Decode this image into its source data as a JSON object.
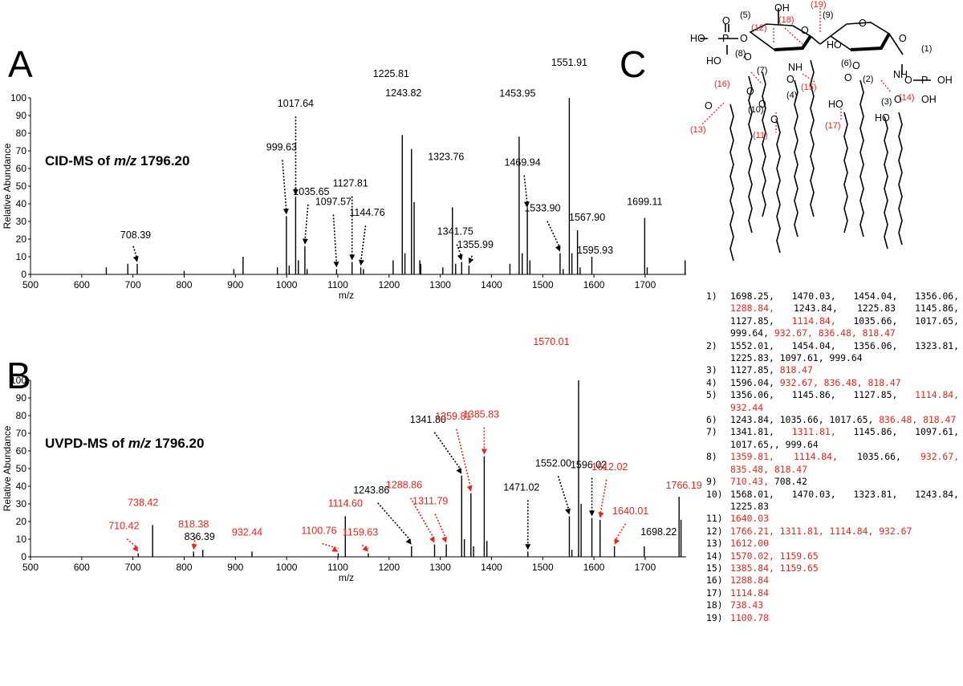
{
  "panels": {
    "a": "A",
    "b": "B",
    "c": "C"
  },
  "chart_data": [
    {
      "id": "A",
      "type": "bar",
      "title": "CID-MS of m/z 1796.20",
      "title_prefix": "CID-MS of ",
      "title_mz": "m/z",
      "title_value": "1796.20",
      "xlabel": "m/z",
      "ylabel": "Relative Abundance",
      "xlim": [
        500,
        1780
      ],
      "ylim": [
        0,
        100
      ],
      "xticks": [
        500,
        600,
        700,
        800,
        900,
        1000,
        1100,
        1200,
        1300,
        1400,
        1500,
        1600,
        1700
      ],
      "yticks": [
        0,
        10,
        20,
        30,
        40,
        50,
        60,
        70,
        80,
        90,
        100
      ],
      "peaks": [
        {
          "mz": 648,
          "i": 4
        },
        {
          "mz": 690,
          "i": 6
        },
        {
          "mz": 708.39,
          "i": 6
        },
        {
          "mz": 800,
          "i": 2
        },
        {
          "mz": 897,
          "i": 3
        },
        {
          "mz": 915,
          "i": 10
        },
        {
          "mz": 982,
          "i": 4
        },
        {
          "mz": 999.63,
          "i": 33
        },
        {
          "mz": 1005,
          "i": 5
        },
        {
          "mz": 1017.64,
          "i": 44
        },
        {
          "mz": 1023,
          "i": 8
        },
        {
          "mz": 1035.65,
          "i": 16
        },
        {
          "mz": 1040,
          "i": 3
        },
        {
          "mz": 1097.57,
          "i": 3
        },
        {
          "mz": 1127.81,
          "i": 7
        },
        {
          "mz": 1144.76,
          "i": 4
        },
        {
          "mz": 1150,
          "i": 3
        },
        {
          "mz": 1208,
          "i": 8
        },
        {
          "mz": 1225.81,
          "i": 79
        },
        {
          "mz": 1231,
          "i": 12
        },
        {
          "mz": 1243.82,
          "i": 71
        },
        {
          "mz": 1249,
          "i": 41
        },
        {
          "mz": 1260,
          "i": 8
        },
        {
          "mz": 1262,
          "i": 6
        },
        {
          "mz": 1305,
          "i": 4
        },
        {
          "mz": 1323.76,
          "i": 38
        },
        {
          "mz": 1330,
          "i": 6
        },
        {
          "mz": 1341.75,
          "i": 7
        },
        {
          "mz": 1355.99,
          "i": 5
        },
        {
          "mz": 1436,
          "i": 6
        },
        {
          "mz": 1453.95,
          "i": 78
        },
        {
          "mz": 1460,
          "i": 12
        },
        {
          "mz": 1469.94,
          "i": 37
        },
        {
          "mz": 1475,
          "i": 8
        },
        {
          "mz": 1533.9,
          "i": 12
        },
        {
          "mz": 1540,
          "i": 3
        },
        {
          "mz": 1551.91,
          "i": 100
        },
        {
          "mz": 1557,
          "i": 12
        },
        {
          "mz": 1567.9,
          "i": 25
        },
        {
          "mz": 1573,
          "i": 4
        },
        {
          "mz": 1595.93,
          "i": 10
        },
        {
          "mz": 1699.11,
          "i": 32
        },
        {
          "mz": 1704,
          "i": 4
        },
        {
          "mz": 1778,
          "i": 8
        }
      ],
      "labels": [
        {
          "text": "708.39",
          "mz": 708.39,
          "i": 6,
          "color": "#000000"
        },
        {
          "text": "999.63",
          "mz": 999.63,
          "i": 33,
          "color": "#000000"
        },
        {
          "text": "1017.64",
          "mz": 1017.64,
          "i": 44,
          "color": "#000000"
        },
        {
          "text": "1035.65",
          "mz": 1035.65,
          "i": 16,
          "color": "#000000"
        },
        {
          "text": "1097.57",
          "mz": 1097.57,
          "i": 3,
          "color": "#000000"
        },
        {
          "text": "1127.81",
          "mz": 1127.81,
          "i": 7,
          "color": "#000000"
        },
        {
          "text": "1144.76",
          "mz": 1144.76,
          "i": 4,
          "color": "#000000"
        },
        {
          "text": "1225.81",
          "mz": 1225.81,
          "i": 79,
          "color": "#000000"
        },
        {
          "text": "1243.82",
          "mz": 1243.82,
          "i": 71,
          "color": "#000000"
        },
        {
          "text": "1323.76",
          "mz": 1323.76,
          "i": 38,
          "color": "#000000"
        },
        {
          "text": "1341.75",
          "mz": 1341.75,
          "i": 7,
          "color": "#000000"
        },
        {
          "text": "1355.99",
          "mz": 1355.99,
          "i": 5,
          "color": "#000000"
        },
        {
          "text": "1453.95",
          "mz": 1453.95,
          "i": 78,
          "color": "#000000"
        },
        {
          "text": "1469.94",
          "mz": 1469.94,
          "i": 37,
          "color": "#000000"
        },
        {
          "text": "1533.90",
          "mz": 1533.9,
          "i": 12,
          "color": "#000000"
        },
        {
          "text": "1551.91",
          "mz": 1551.91,
          "i": 100,
          "color": "#000000"
        },
        {
          "text": "1567.90",
          "mz": 1567.9,
          "i": 25,
          "color": "#000000"
        },
        {
          "text": "1595.93",
          "mz": 1595.93,
          "i": 10,
          "color": "#000000"
        },
        {
          "text": "1699.11",
          "mz": 1699.11,
          "i": 32,
          "color": "#000000"
        }
      ]
    },
    {
      "id": "B",
      "type": "bar",
      "title": "UVPD-MS of m/z 1796.20",
      "title_prefix": "UVPD-MS of ",
      "title_mz": "m/z",
      "title_value": "1796.20",
      "xlabel": "m/z",
      "ylabel": "Relative Abundance",
      "xlim": [
        500,
        1780
      ],
      "ylim": [
        0,
        100
      ],
      "xticks": [
        500,
        600,
        700,
        800,
        900,
        1000,
        1100,
        1200,
        1300,
        1400,
        1500,
        1600,
        1700
      ],
      "yticks": [
        0,
        10,
        20,
        30,
        40,
        50,
        60,
        70,
        80,
        90,
        100
      ],
      "peaks": [
        {
          "mz": 710.42,
          "i": 2
        },
        {
          "mz": 738.42,
          "i": 18
        },
        {
          "mz": 818.38,
          "i": 3
        },
        {
          "mz": 836.39,
          "i": 4
        },
        {
          "mz": 932.44,
          "i": 3
        },
        {
          "mz": 1100.76,
          "i": 2
        },
        {
          "mz": 1114.6,
          "i": 23
        },
        {
          "mz": 1159.63,
          "i": 2
        },
        {
          "mz": 1243.86,
          "i": 6
        },
        {
          "mz": 1288.86,
          "i": 7
        },
        {
          "mz": 1311.79,
          "i": 7
        },
        {
          "mz": 1341.8,
          "i": 46
        },
        {
          "mz": 1347,
          "i": 10
        },
        {
          "mz": 1359.81,
          "i": 36
        },
        {
          "mz": 1365,
          "i": 6
        },
        {
          "mz": 1385.83,
          "i": 57
        },
        {
          "mz": 1391,
          "i": 9
        },
        {
          "mz": 1471.02,
          "i": 3
        },
        {
          "mz": 1552.0,
          "i": 23
        },
        {
          "mz": 1557,
          "i": 4
        },
        {
          "mz": 1570.01,
          "i": 100
        },
        {
          "mz": 1575,
          "i": 30
        },
        {
          "mz": 1596.02,
          "i": 22
        },
        {
          "mz": 1612.02,
          "i": 21
        },
        {
          "mz": 1640.01,
          "i": 6
        },
        {
          "mz": 1698.22,
          "i": 6
        },
        {
          "mz": 1766.19,
          "i": 34
        },
        {
          "mz": 1770,
          "i": 21
        }
      ],
      "labels": [
        {
          "text": "710.42",
          "mz": 710.42,
          "i": 2,
          "color": "#e8241c"
        },
        {
          "text": "738.42",
          "mz": 738.42,
          "i": 18,
          "color": "#e8241c"
        },
        {
          "text": "818.38",
          "mz": 818.38,
          "i": 3,
          "color": "#e8241c"
        },
        {
          "text": "836.39",
          "mz": 836.39,
          "i": 4,
          "color": "#000000"
        },
        {
          "text": "932.44",
          "mz": 932.44,
          "i": 3,
          "color": "#e8241c"
        },
        {
          "text": "1100.76",
          "mz": 1100.76,
          "i": 2,
          "color": "#e8241c"
        },
        {
          "text": "1114.60",
          "mz": 1114.6,
          "i": 23,
          "color": "#e8241c"
        },
        {
          "text": "1159.63",
          "mz": 1159.63,
          "i": 2,
          "color": "#e8241c"
        },
        {
          "text": "1243.86",
          "mz": 1243.86,
          "i": 6,
          "color": "#000000"
        },
        {
          "text": "1288.86",
          "mz": 1288.86,
          "i": 7,
          "color": "#e8241c"
        },
        {
          "text": "1311.79",
          "mz": 1311.79,
          "i": 7,
          "color": "#e8241c"
        },
        {
          "text": "1341.80",
          "mz": 1341.8,
          "i": 46,
          "color": "#000000"
        },
        {
          "text": "1359.81",
          "mz": 1359.81,
          "i": 36,
          "color": "#e8241c"
        },
        {
          "text": "1385.83",
          "mz": 1385.83,
          "i": 57,
          "color": "#e8241c"
        },
        {
          "text": "1471.02",
          "mz": 1471.02,
          "i": 3,
          "color": "#000000"
        },
        {
          "text": "1552.00",
          "mz": 1552.0,
          "i": 23,
          "color": "#000000"
        },
        {
          "text": "1570.01",
          "mz": 1570.01,
          "i": 100,
          "color": "#e8241c"
        },
        {
          "text": "1596.02",
          "mz": 1596.02,
          "i": 22,
          "color": "#000000"
        },
        {
          "text": "1612.02",
          "mz": 1612.02,
          "i": 21,
          "color": "#e8241c"
        },
        {
          "text": "1640.01",
          "mz": 1640.01,
          "i": 6,
          "color": "#e8241c"
        },
        {
          "text": "1698.22",
          "mz": 1698.22,
          "i": 6,
          "color": "#000000"
        },
        {
          "text": "1766.19",
          "mz": 1766.19,
          "i": 34,
          "color": "#e8241c"
        }
      ]
    }
  ],
  "structure": {
    "texts": {
      "oh_top": "OH",
      "o_top": "O",
      "ho_p": "HO",
      "p": "P",
      "o_p": "O",
      "ho_p2": "HO",
      "o_ring1": "O",
      "o_ring2": "O",
      "ho_r2": "HO",
      "o8": "O",
      "nh1": "NH",
      "o_c1": "O",
      "o_r2b": "O",
      "nh2": "NH",
      "o_p3": "O",
      "p3": "P",
      "oh_p3": "OH",
      "oh_p3b": "OH",
      "o_ac1": "O",
      "o_ac2": "O",
      "o_ac3": "O",
      "o_ac4": "O",
      "o_ac5": "O",
      "o_ac6": "O",
      "ho_3": "HO",
      "ho_4": "HO",
      "o_c6": "O"
    },
    "black_numbers": [
      "(5)",
      "(9)",
      "(8)",
      "(7)",
      "(1)",
      "(6)",
      "(2)",
      "(4)",
      "(10)",
      "(3)"
    ],
    "red_numbers": [
      "(19)",
      "(18)",
      "(12)",
      "(16)",
      "(15)",
      "(14)",
      "(13)",
      "(11)",
      "(17)"
    ]
  },
  "assignments": [
    {
      "num": "1)",
      "values": [
        {
          "t": "1698.25,",
          "red": false
        },
        {
          "t": "1470.03,",
          "red": false
        },
        {
          "t": "1454.04,",
          "red": false
        },
        {
          "t": "1356.06,",
          "red": false
        },
        {
          "t": "1288.84,",
          "red": true
        },
        {
          "t": "1243.84,",
          "red": false
        },
        {
          "t": "1225.83",
          "red": false
        },
        {
          "t": "1145.86,",
          "red": false
        },
        {
          "t": "1127.85,",
          "red": false
        },
        {
          "t": "1114.84,",
          "red": true
        },
        {
          "t": "1035.66,",
          "red": false
        },
        {
          "t": "1017.65,",
          "red": false
        },
        {
          "t": "999.64,",
          "red": false
        },
        {
          "t": "932.67,",
          "red": true
        },
        {
          "t": "836.48,",
          "red": true
        },
        {
          "t": "818.47",
          "red": true
        }
      ]
    },
    {
      "num": "2)",
      "values": [
        {
          "t": "1552.01,",
          "red": false
        },
        {
          "t": "1454.04,",
          "red": false
        },
        {
          "t": "1356.06,",
          "red": false
        },
        {
          "t": "1323.81,",
          "red": false
        },
        {
          "t": "1225.83,",
          "red": false
        },
        {
          "t": "1097.61,",
          "red": false
        },
        {
          "t": "999.64",
          "red": false
        }
      ]
    },
    {
      "num": "3)",
      "values": [
        {
          "t": "1127.85,",
          "red": false
        },
        {
          "t": "818.47",
          "red": true
        }
      ]
    },
    {
      "num": "4)",
      "values": [
        {
          "t": "1596.04,",
          "red": false
        },
        {
          "t": "932.67,",
          "red": true
        },
        {
          "t": "836.48,",
          "red": true
        },
        {
          "t": "818.47",
          "red": true
        }
      ]
    },
    {
      "num": "5)",
      "values": [
        {
          "t": "1356.06,",
          "red": false
        },
        {
          "t": "1145.86,",
          "red": false
        },
        {
          "t": "1127.85,",
          "red": false
        },
        {
          "t": "1114.84,",
          "red": true
        },
        {
          "t": "932.44",
          "red": true
        }
      ]
    },
    {
      "num": "6)",
      "values": [
        {
          "t": "1243.84,",
          "red": false
        },
        {
          "t": "1035.66,",
          "red": false
        },
        {
          "t": "1017.65,",
          "red": false
        },
        {
          "t": "836.48,",
          "red": true
        },
        {
          "t": "818.47",
          "red": true
        }
      ]
    },
    {
      "num": "7)",
      "values": [
        {
          "t": "1341.81,",
          "red": false
        },
        {
          "t": "1311.81,",
          "red": true
        },
        {
          "t": "1145.86,",
          "red": false
        },
        {
          "t": "1097.61,",
          "red": false
        },
        {
          "t": "1017.65,,",
          "red": false
        },
        {
          "t": "999.64",
          "red": false
        }
      ]
    },
    {
      "num": "8)",
      "values": [
        {
          "t": "1359.81,",
          "red": true
        },
        {
          "t": "1114.84,",
          "red": true
        },
        {
          "t": "1035.66,",
          "red": false
        },
        {
          "t": "932.67,",
          "red": true
        },
        {
          "t": "835.48,",
          "red": true
        },
        {
          "t": "818.47",
          "red": true
        }
      ]
    },
    {
      "num": "9)",
      "values": [
        {
          "t": "710.43,",
          "red": true
        },
        {
          "t": "708.42",
          "red": false
        }
      ]
    },
    {
      "num": "10)",
      "values": [
        {
          "t": "1568.01,",
          "red": false
        },
        {
          "t": "1470.03,",
          "red": false
        },
        {
          "t": "1323.81,",
          "red": false
        },
        {
          "t": "1243.84,",
          "red": false
        },
        {
          "t": "1225.83",
          "red": false
        }
      ]
    },
    {
      "num": "11)",
      "values": [
        {
          "t": "1640.03",
          "red": true
        }
      ]
    },
    {
      "num": "12)",
      "values": [
        {
          "t": "1766.21,",
          "red": true
        },
        {
          "t": "1311.81,",
          "red": true
        },
        {
          "t": "1114.84,",
          "red": true
        },
        {
          "t": "932.67",
          "red": true
        }
      ]
    },
    {
      "num": "13)",
      "values": [
        {
          "t": "1612.00",
          "red": true
        }
      ]
    },
    {
      "num": "14)",
      "values": [
        {
          "t": "1570.02,",
          "red": true
        },
        {
          "t": "1159.65",
          "red": true
        }
      ]
    },
    {
      "num": "15)",
      "values": [
        {
          "t": "1385.84,",
          "red": true
        },
        {
          "t": "1159.65",
          "red": true
        }
      ]
    },
    {
      "num": "16)",
      "values": [
        {
          "t": "1288.84",
          "red": true
        }
      ]
    },
    {
      "num": "17)",
      "values": [
        {
          "t": "1114.84",
          "red": true
        }
      ]
    },
    {
      "num": "18)",
      "values": [
        {
          "t": "738.43",
          "red": true
        }
      ]
    },
    {
      "num": "19)",
      "values": [
        {
          "t": "1100.78",
          "red": true
        }
      ]
    }
  ],
  "colors": {
    "red": "#e8241c",
    "black": "#000000"
  }
}
